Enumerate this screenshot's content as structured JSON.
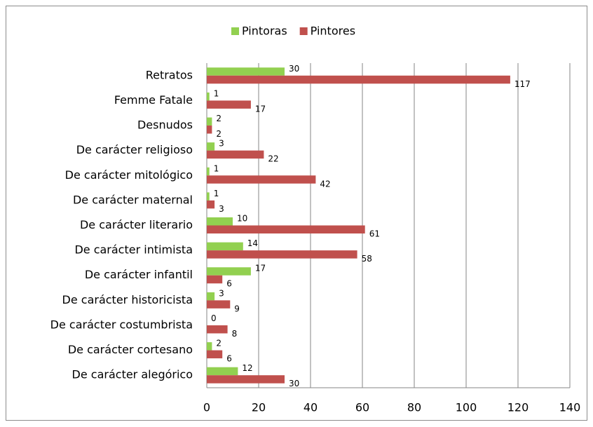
{
  "chart_data": {
    "type": "hbar",
    "categories": [
      "Retratos",
      "Femme Fatale",
      "Desnudos",
      "De carácter religioso",
      "De carácter mitológico",
      "De carácter maternal",
      "De carácter literario",
      "De carácter intimista",
      "De carácter infantil",
      "De carácter historicista",
      "De carácter costumbrista",
      "De carácter cortesano",
      "De carácter alegórico"
    ],
    "series": [
      {
        "name": "Pintoras",
        "color": "#92d050",
        "values": [
          30,
          1,
          2,
          3,
          1,
          1,
          10,
          14,
          17,
          3,
          0,
          2,
          12
        ]
      },
      {
        "name": "Pintores",
        "color": "#c0504d",
        "values": [
          117,
          17,
          2,
          22,
          42,
          3,
          61,
          58,
          6,
          9,
          8,
          6,
          30
        ]
      }
    ],
    "xlim": [
      0,
      140
    ],
    "xticks": [
      0,
      20,
      40,
      60,
      80,
      100,
      120,
      140
    ],
    "grid": true,
    "legend": "top"
  }
}
